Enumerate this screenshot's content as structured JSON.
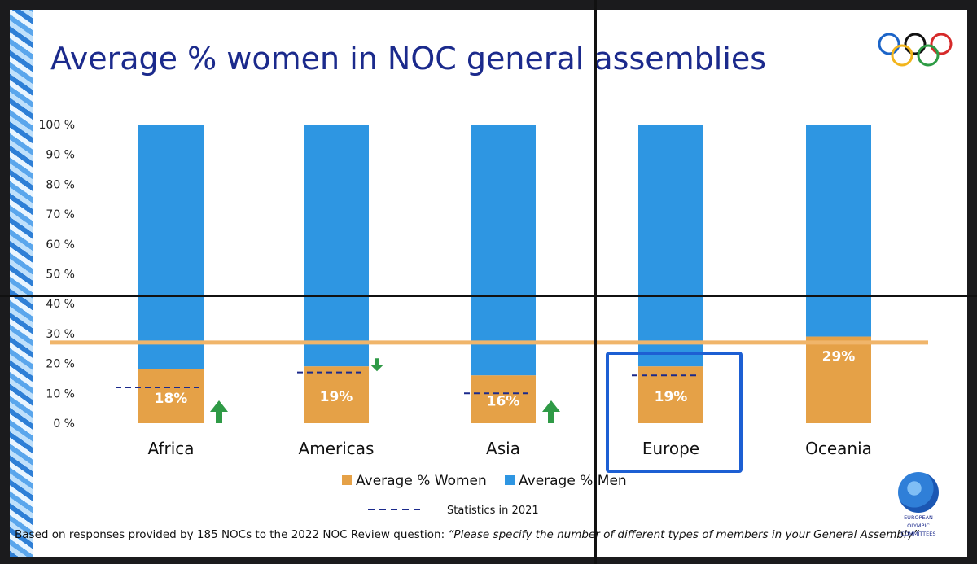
{
  "title": "Average % women in NOC general assemblies",
  "colors": {
    "women": "#e5a147",
    "men": "#2e96e2",
    "line_2021": "#1b2a8c",
    "target_line": "#f0b56a",
    "highlight_box": "#1d5fd3",
    "arrow_up": "#2f9a46",
    "arrow_down": "#2f9a46"
  },
  "chart_data": {
    "type": "bar",
    "stacked": true,
    "categories": [
      "Africa",
      "Americas",
      "Asia",
      "Europe",
      "Oceania"
    ],
    "series": [
      {
        "name": "Average % Women",
        "values": [
          18,
          19,
          16,
          19,
          29
        ]
      },
      {
        "name": "Average % Men",
        "values": [
          82,
          81,
          84,
          81,
          71
        ]
      }
    ],
    "data_labels": [
      "18%",
      "19%",
      "16%",
      "19%",
      "29%"
    ],
    "statistics_2021": [
      12,
      17,
      10,
      16,
      27
    ],
    "statistics_2021_label": "Statistics in 2021",
    "target_line_value": 27,
    "trend_arrows": [
      "up-icon",
      "down-icon",
      "up-icon",
      "",
      ""
    ],
    "highlighted_category": "Europe",
    "y_ticks": [
      "0 %",
      "10 %",
      "20 %",
      "30 %",
      "40 %",
      "50 %",
      "60 %",
      "70 %",
      "80 %",
      "90 %",
      "100 %"
    ],
    "ylim": [
      0,
      100
    ],
    "legend_placement": "bottom-center",
    "grid": false
  },
  "footnote": {
    "prefix": "Based on responses provided by 185 NOCs to the 2022 NOC Review question: ",
    "quote": "“Please specify the number of different types of members in your General Assembly”"
  },
  "logo": {
    "icon": "olympic-rings-icon",
    "eoc_text": [
      "EUROPEAN",
      "OLYMPIC",
      "COMMITTEES"
    ]
  }
}
